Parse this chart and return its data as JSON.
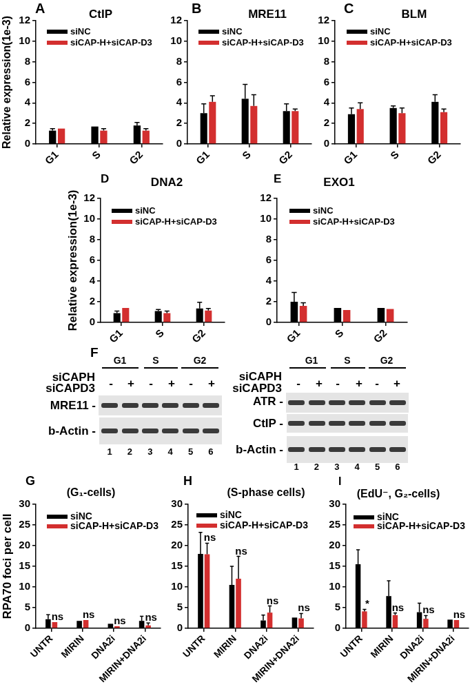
{
  "chart_data": [
    {
      "type": "bar",
      "title": "CtIP",
      "ylabel": "Relative expression(1e-3)",
      "categories": [
        "G1",
        "S",
        "G2"
      ],
      "series": [
        {
          "name": "siNC",
          "color": "#000000",
          "values": [
            1.3,
            1.7,
            1.8
          ],
          "errors": [
            [
              1.3,
              1.5
            ],
            null,
            [
              1.8,
              2.1
            ]
          ]
        },
        {
          "name": "siCAP-H+siCAP-D3",
          "color": "#d32f2f",
          "values": [
            1.5,
            1.3,
            1.3
          ],
          "errors": [
            null,
            [
              1.3,
              1.5
            ],
            [
              1.3,
              1.5
            ]
          ]
        }
      ],
      "ylim": [
        0,
        12
      ],
      "yticks": [
        0,
        2,
        4,
        6,
        8,
        10,
        12
      ],
      "legend": "top left",
      "annotations": [
        "A"
      ]
    },
    {
      "type": "bar",
      "title": "MRE11",
      "categories": [
        "G1",
        "S",
        "G2"
      ],
      "series": [
        {
          "name": "siNC",
          "color": "#000000",
          "values": [
            3.0,
            4.4,
            3.2
          ],
          "errors": [
            [
              3.0,
              3.9
            ],
            [
              4.4,
              5.8
            ],
            [
              3.2,
              3.9
            ]
          ]
        },
        {
          "name": "siCAP-H+siCAP-D3",
          "color": "#d32f2f",
          "values": [
            4.1,
            3.7,
            3.2
          ],
          "errors": [
            [
              4.1,
              4.7
            ],
            [
              3.7,
              4.8
            ],
            [
              3.2,
              3.4
            ]
          ]
        }
      ],
      "ylim": [
        0,
        12
      ],
      "yticks": [
        0,
        2,
        4,
        6,
        8,
        10,
        12
      ],
      "legend": "top left",
      "annotations": [
        "B"
      ]
    },
    {
      "type": "bar",
      "title": "BLM",
      "categories": [
        "G1",
        "S",
        "G2"
      ],
      "series": [
        {
          "name": "siNC",
          "color": "#000000",
          "values": [
            2.9,
            3.5,
            4.1
          ],
          "errors": [
            [
              2.9,
              3.5
            ],
            [
              3.5,
              3.7
            ],
            [
              4.1,
              4.8
            ]
          ]
        },
        {
          "name": "siCAP-H+siCAP-D3",
          "color": "#d32f2f",
          "values": [
            3.4,
            3.0,
            3.1
          ],
          "errors": [
            [
              3.4,
              4.0
            ],
            [
              3.0,
              3.5
            ],
            [
              3.1,
              3.4
            ]
          ]
        }
      ],
      "ylim": [
        0,
        12
      ],
      "yticks": [
        0,
        2,
        4,
        6,
        8,
        10,
        12
      ],
      "legend": "top left",
      "annotations": [
        "C"
      ]
    },
    {
      "type": "bar",
      "title": "DNA2",
      "ylabel": "Relative expression(1e-3)",
      "categories": [
        "G1",
        "S",
        "G2"
      ],
      "series": [
        {
          "name": "siNC",
          "color": "#000000",
          "values": [
            0.9,
            1.1,
            1.35
          ],
          "errors": [
            [
              0.9,
              1.1
            ],
            [
              1.1,
              1.25
            ],
            [
              1.35,
              1.95
            ]
          ]
        },
        {
          "name": "siCAP-H+siCAP-D3",
          "color": "#d32f2f",
          "values": [
            1.4,
            0.9,
            1.15
          ],
          "errors": [
            null,
            [
              0.9,
              1.1
            ],
            [
              1.15,
              1.35
            ]
          ]
        }
      ],
      "ylim": [
        0,
        12
      ],
      "yticks": [
        0,
        2,
        4,
        6,
        8,
        10,
        12
      ],
      "legend": "top left",
      "annotations": [
        "D"
      ]
    },
    {
      "type": "bar",
      "title": "EXO1",
      "categories": [
        "G1",
        "S",
        "G2"
      ],
      "series": [
        {
          "name": "siNC",
          "color": "#000000",
          "values": [
            2.0,
            1.4,
            1.4
          ],
          "errors": [
            [
              2.0,
              2.9
            ],
            null,
            null
          ]
        },
        {
          "name": "siCAP-H+siCAP-D3",
          "color": "#d32f2f",
          "values": [
            1.6,
            1.2,
            1.3
          ],
          "errors": [
            [
              1.6,
              1.9
            ],
            null,
            null
          ]
        }
      ],
      "ylim": [
        0,
        12
      ],
      "yticks": [
        0,
        2,
        4,
        6,
        8,
        10,
        12
      ],
      "legend": "top left",
      "annotations": [
        "E"
      ]
    },
    {
      "type": "other",
      "annotations": [
        "F",
        "G1",
        "S",
        "G2",
        "siCAPH",
        "siCAPD3",
        "-",
        "+",
        "-",
        "+",
        "-",
        "+",
        "1 2 3 4 5 6"
      ],
      "y_categories": [
        "MRE11 -",
        "b-Actin -"
      ]
    },
    {
      "type": "other",
      "annotations": [
        "G1",
        "S",
        "G2",
        "siCAPH",
        "siCAPD3",
        "-",
        "+",
        "-",
        "+",
        "-",
        "+",
        "1 2 3 4 5 6"
      ],
      "y_categories": [
        "ATR -",
        "CtIP -",
        "b-Actin -"
      ]
    },
    {
      "type": "bar",
      "title": "(G₁-cells)",
      "ylabel": "RPA70 foci per cell",
      "categories": [
        "UNTR",
        "MIRIN",
        "DNA2i",
        "MIRIN+DNA2i"
      ],
      "series": [
        {
          "name": "siNC",
          "color": "#000000",
          "values": [
            2.2,
            1.8,
            1.1,
            1.8
          ],
          "errors": [
            [
              2.2,
              3.3
            ],
            null,
            null,
            [
              1.8,
              2.9
            ]
          ]
        },
        {
          "name": "siCAP-H+siCAP-D3",
          "color": "#d32f2f",
          "values": [
            1.5,
            2.0,
            0.5,
            0.7
          ],
          "errors": [
            null,
            null,
            null,
            [
              0.7,
              1.3
            ]
          ]
        }
      ],
      "ylim": [
        0,
        30
      ],
      "yticks": [
        0,
        5,
        10,
        15,
        20,
        25,
        30
      ],
      "legend": "top left",
      "annotations": [
        "G",
        {
          "text": "ns",
          "x": "UNTR",
          "y": 1.5
        },
        {
          "text": "ns",
          "x": "MIRIN",
          "y": 2.0
        },
        {
          "text": "ns",
          "x": "DNA2i",
          "y": 0.5
        },
        {
          "text": "ns",
          "x": "MIRIN+DNA2i",
          "y": 1.3
        }
      ]
    },
    {
      "type": "bar",
      "title": "(S-phase cells)",
      "categories": [
        "UNTR",
        "MIRIN",
        "DNA2i",
        "MIRIN+DNA2i"
      ],
      "series": [
        {
          "name": "siNC",
          "color": "#000000",
          "values": [
            18.0,
            10.5,
            1.9,
            2.6
          ],
          "errors": [
            [
              18.0,
              23.2
            ],
            [
              10.5,
              15.0
            ],
            [
              1.9,
              3.2
            ],
            null
          ]
        },
        {
          "name": "siCAP-H+siCAP-D3",
          "color": "#d32f2f",
          "values": [
            17.9,
            12.0,
            3.8,
            2.4
          ],
          "errors": [
            [
              17.9,
              20.6
            ],
            [
              12.0,
              17.4
            ],
            [
              3.8,
              5.4
            ],
            [
              2.4,
              3.6
            ]
          ]
        }
      ],
      "ylim": [
        0,
        30
      ],
      "yticks": [
        0,
        5,
        10,
        15,
        20,
        25,
        30
      ],
      "legend": "top left",
      "annotations": [
        "H",
        {
          "text": "ns",
          "x": "UNTR",
          "y": 20.6
        },
        {
          "text": "ns",
          "x": "MIRIN",
          "y": 17.4
        },
        {
          "text": "ns",
          "x": "DNA2i",
          "y": 5.4
        },
        {
          "text": "ns",
          "x": "MIRIN+DNA2i",
          "y": 3.6
        }
      ]
    },
    {
      "type": "bar",
      "title": "(EdU⁻, G₂-cells)",
      "categories": [
        "UNTR",
        "MIRIN",
        "DNA2i",
        "MIRIN+DNA2i"
      ],
      "series": [
        {
          "name": "siNC",
          "color": "#000000",
          "values": [
            15.5,
            7.8,
            3.9,
            2.1
          ],
          "errors": [
            [
              15.5,
              19.0
            ],
            [
              7.8,
              11.5
            ],
            [
              3.9,
              6.1
            ],
            null
          ]
        },
        {
          "name": "siCAP-H+siCAP-D3",
          "color": "#d32f2f",
          "values": [
            4.1,
            3.2,
            2.3,
            2.0
          ],
          "errors": [
            [
              4.1,
              4.6
            ],
            [
              3.2,
              3.7
            ],
            [
              2.3,
              3.1
            ],
            null
          ]
        }
      ],
      "ylim": [
        0,
        30
      ],
      "yticks": [
        0,
        5,
        10,
        15,
        20,
        25,
        30
      ],
      "legend": "top left",
      "annotations": [
        "I",
        {
          "text": "*",
          "x": "UNTR",
          "y": 4.6
        },
        {
          "text": "ns",
          "x": "MIRIN",
          "y": 3.7
        },
        {
          "text": "ns",
          "x": "DNA2i",
          "y": 3.1
        },
        {
          "text": "ns",
          "x": "MIRIN+DNA2i",
          "y": 2.0
        }
      ]
    }
  ]
}
